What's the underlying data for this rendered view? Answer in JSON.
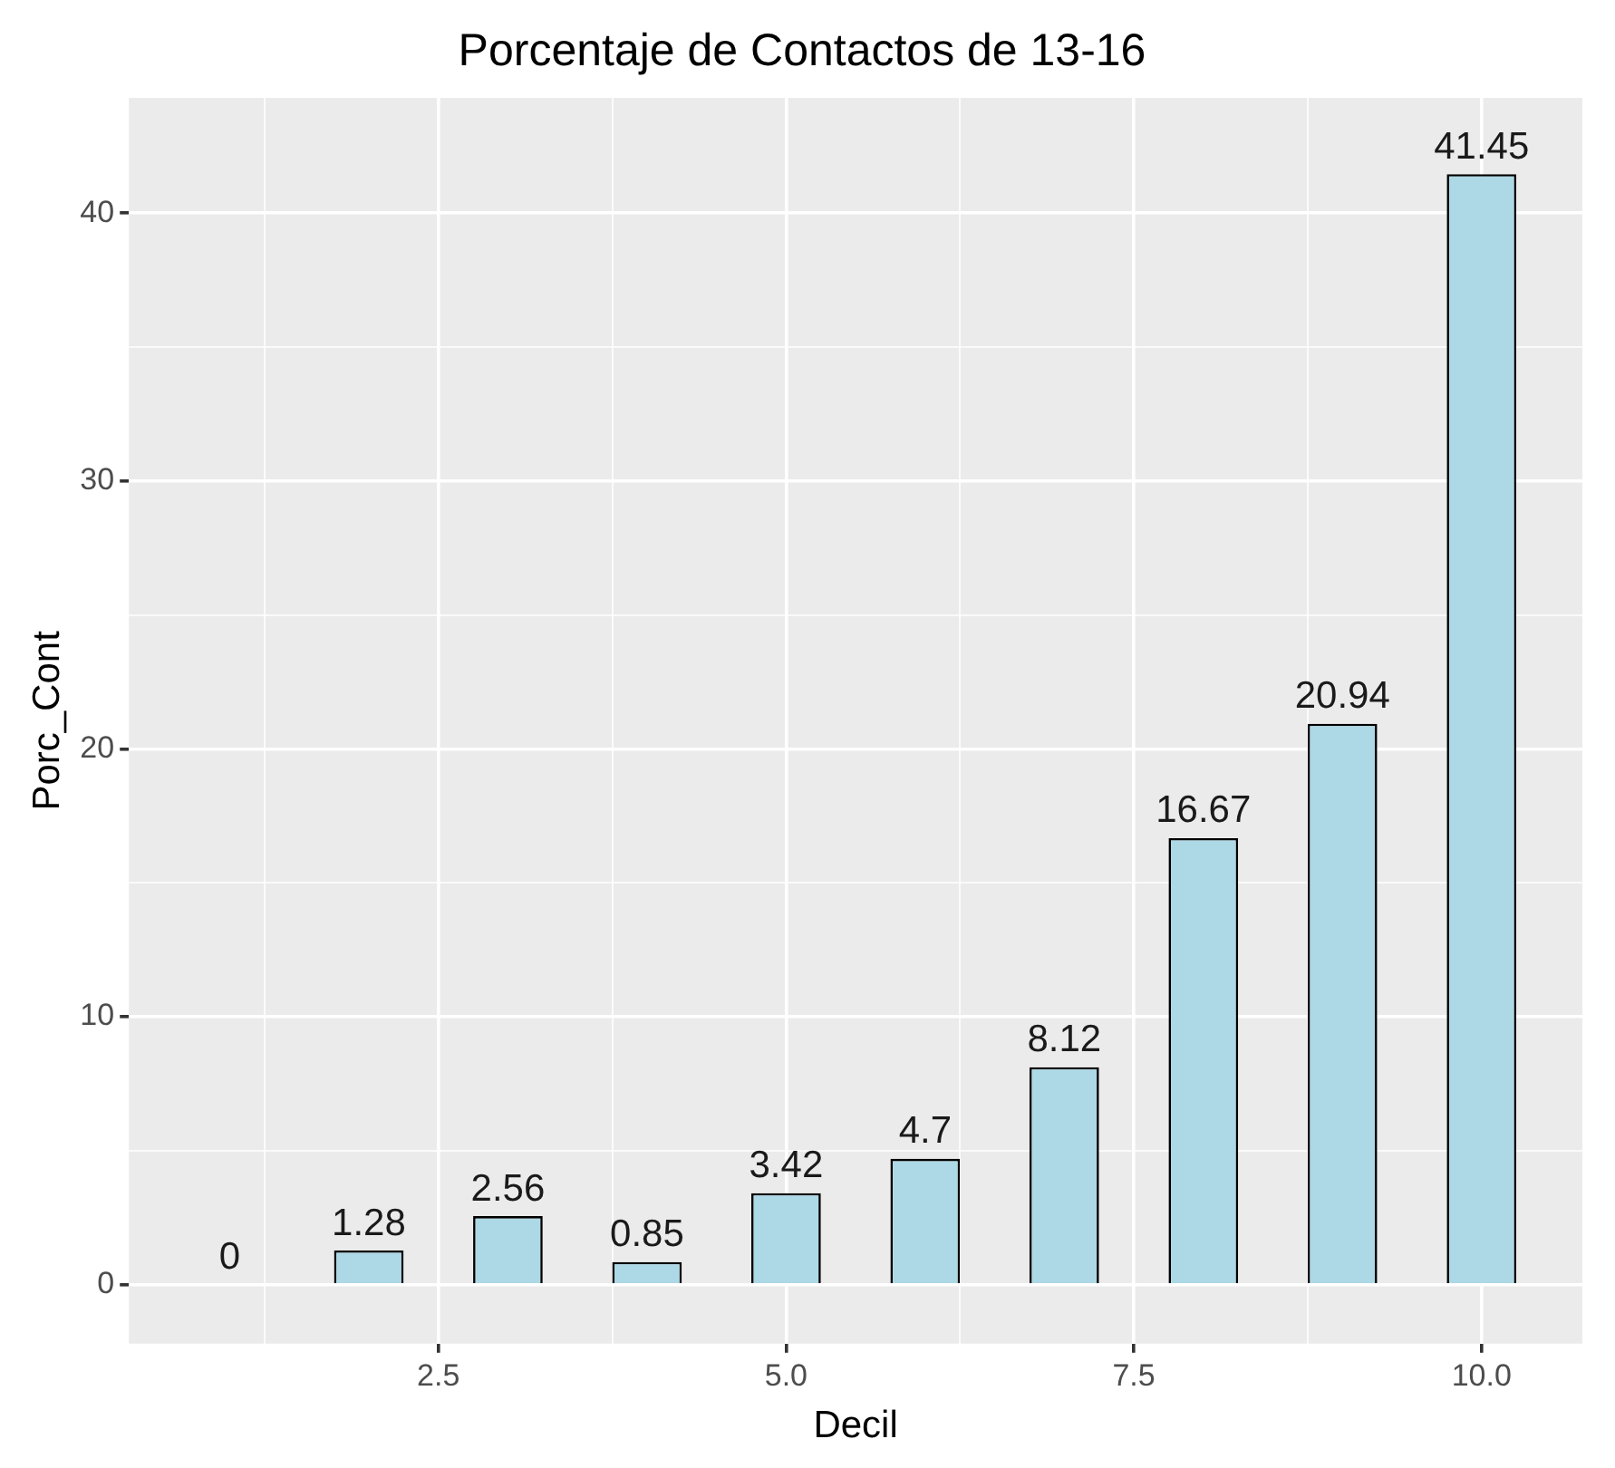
{
  "chart_data": {
    "type": "bar",
    "title": "Porcentaje de Contactos de 13-16",
    "xlabel": "Decil",
    "ylabel": "Porc_Cont",
    "x": [
      1,
      2,
      3,
      4,
      5,
      6,
      7,
      8,
      9,
      10
    ],
    "values": [
      0,
      1.28,
      2.56,
      0.85,
      3.42,
      4.7,
      8.12,
      16.67,
      20.94,
      41.45
    ],
    "color": "#add8e6",
    "xlim": [
      0.275,
      10.725
    ],
    "xticks": [
      {
        "value": 1.25,
        "label": null
      },
      {
        "value": 2.5,
        "label": "2.5"
      },
      {
        "value": 3.75,
        "label": null
      },
      {
        "value": 5,
        "label": "5.0"
      },
      {
        "value": 6.25,
        "label": null
      },
      {
        "value": 7.5,
        "label": "7.5"
      },
      {
        "value": 8.75,
        "label": null
      },
      {
        "value": 10,
        "label": "10.0"
      }
    ],
    "ylim": [
      -2.2,
      44.3
    ],
    "yticks": [
      0,
      {
        "value": 5,
        "label": null
      },
      10,
      {
        "value": 15,
        "label": null
      },
      20,
      {
        "value": 25,
        "label": null
      },
      30,
      {
        "value": 35,
        "label": null
      },
      40
    ],
    "grid": true,
    "data_labels": true
  }
}
